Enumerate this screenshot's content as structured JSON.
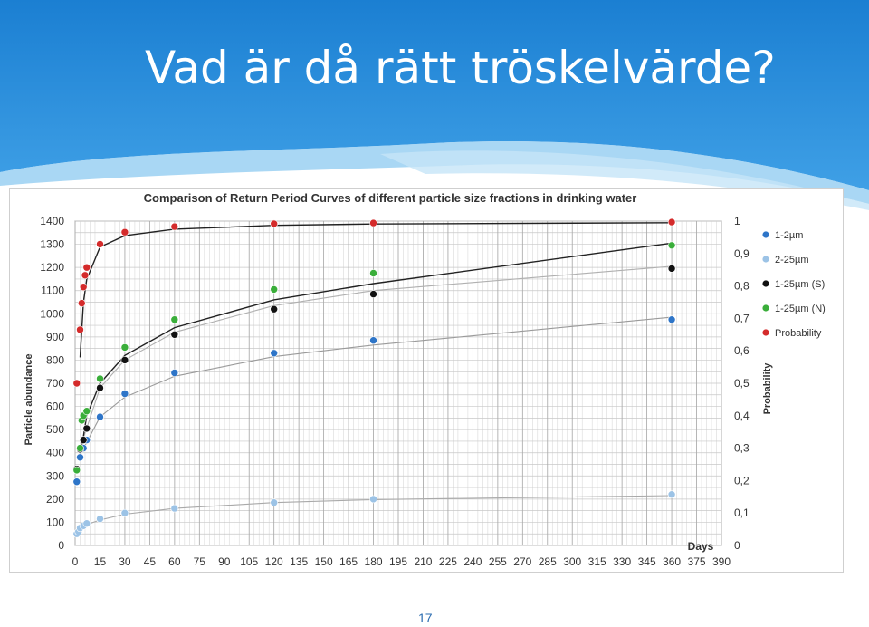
{
  "slide": {
    "title": "Vad är då rätt tröskelvärde?",
    "page_number": "17"
  },
  "colors": {
    "header_dark": "#1f86d6",
    "header_light": "#8cc9f0",
    "title_text": "#ffffff",
    "page_number": "#2b6cb0"
  },
  "chart_data": {
    "type": "scatter",
    "title": "Comparison of Return Period Curves of different particle size fractions in drinking water",
    "xlabel": "Days",
    "ylabel": "Particle abundance",
    "y2label": "Probability",
    "xlim": [
      0,
      390
    ],
    "ylim": [
      0,
      1400
    ],
    "y2lim": [
      0,
      1
    ],
    "x_ticks": [
      0,
      15,
      30,
      45,
      60,
      75,
      90,
      105,
      120,
      135,
      150,
      165,
      180,
      195,
      210,
      225,
      240,
      255,
      270,
      285,
      300,
      315,
      330,
      345,
      360,
      375,
      390
    ],
    "y_ticks": [
      0,
      100,
      200,
      300,
      400,
      500,
      600,
      700,
      800,
      900,
      1000,
      1100,
      1200,
      1300,
      1400
    ],
    "y2_ticks": [
      "0",
      "0,1",
      "0,2",
      "0,3",
      "0,4",
      "0,5",
      "0,6",
      "0,7",
      "0,8",
      "0,9",
      "1"
    ],
    "grid": true,
    "legend_position": "right",
    "series": [
      {
        "name": "1-2µm",
        "color": "#2e75c8",
        "axis": "left",
        "x": [
          1,
          3,
          5,
          7,
          15,
          30,
          60,
          120,
          180,
          360
        ],
        "y": [
          275,
          380,
          420,
          455,
          555,
          655,
          745,
          830,
          885,
          975
        ],
        "trend": [
          [
            3,
            390
          ],
          [
            15,
            555
          ],
          [
            30,
            640
          ],
          [
            60,
            730
          ],
          [
            120,
            815
          ],
          [
            180,
            865
          ],
          [
            360,
            985
          ]
        ]
      },
      {
        "name": "2-25µm",
        "color": "#9cc3e6",
        "axis": "left",
        "x": [
          1,
          2,
          3,
          5,
          7,
          15,
          30,
          60,
          120,
          180,
          360
        ],
        "y": [
          50,
          60,
          75,
          85,
          95,
          115,
          140,
          160,
          185,
          200,
          220
        ],
        "trend": [
          [
            1,
            45
          ],
          [
            7,
            90
          ],
          [
            15,
            110
          ],
          [
            30,
            135
          ],
          [
            60,
            160
          ],
          [
            120,
            185
          ],
          [
            180,
            198
          ],
          [
            360,
            215
          ]
        ]
      },
      {
        "name": "1-25µm (S)",
        "color": "#111111",
        "axis": "left",
        "x": [
          1,
          3,
          5,
          7,
          15,
          30,
          60,
          120,
          180,
          360
        ],
        "y": [
          330,
          415,
          455,
          505,
          680,
          800,
          910,
          1020,
          1085,
          1195
        ],
        "trend": [
          [
            3,
            420
          ],
          [
            15,
            680
          ],
          [
            30,
            800
          ],
          [
            60,
            920
          ],
          [
            120,
            1035
          ],
          [
            180,
            1100
          ],
          [
            360,
            1205
          ]
        ]
      },
      {
        "name": "1-25µm (N)",
        "color": "#3aae3a",
        "axis": "left",
        "x": [
          1,
          3,
          4,
          5,
          7,
          15,
          30,
          60,
          120,
          180,
          360
        ],
        "y": [
          325,
          420,
          540,
          560,
          580,
          720,
          855,
          975,
          1105,
          1175,
          1295
        ],
        "trend": [
          [
            3,
            380
          ],
          [
            7,
            560
          ],
          [
            15,
            700
          ],
          [
            30,
            820
          ],
          [
            60,
            940
          ],
          [
            120,
            1060
          ],
          [
            180,
            1130
          ],
          [
            360,
            1305
          ]
        ]
      },
      {
        "name": "Probability",
        "color": "#d42b2b",
        "axis": "right",
        "x": [
          1,
          3,
          4,
          5,
          6,
          7,
          15,
          30,
          60,
          120,
          180,
          360
        ],
        "y": [
          0.5,
          0.665,
          0.747,
          0.797,
          0.833,
          0.857,
          0.929,
          0.966,
          0.983,
          0.992,
          0.994,
          0.997
        ],
        "trend": [
          [
            3,
            0.58
          ],
          [
            5,
            0.75
          ],
          [
            7,
            0.82
          ],
          [
            15,
            0.92
          ],
          [
            30,
            0.955
          ],
          [
            60,
            0.975
          ],
          [
            120,
            0.987
          ],
          [
            180,
            0.991
          ],
          [
            360,
            0.995
          ]
        ]
      }
    ]
  }
}
